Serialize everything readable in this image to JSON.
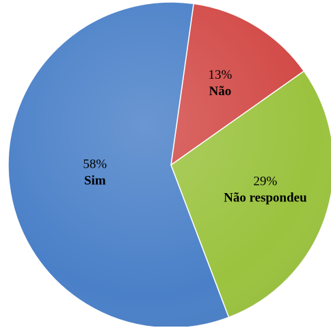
{
  "chart_data": {
    "type": "pie",
    "title": "",
    "categories": [
      "Não",
      "Não respondeu",
      "Sim"
    ],
    "values": [
      13,
      29,
      58
    ],
    "value_labels": [
      "13%",
      "29%",
      "58%"
    ],
    "colors": [
      "#D24A47",
      "#9BC33F",
      "#4A80C8"
    ],
    "start_angle_deg": 8,
    "direction": "clockwise",
    "legend": "none"
  }
}
